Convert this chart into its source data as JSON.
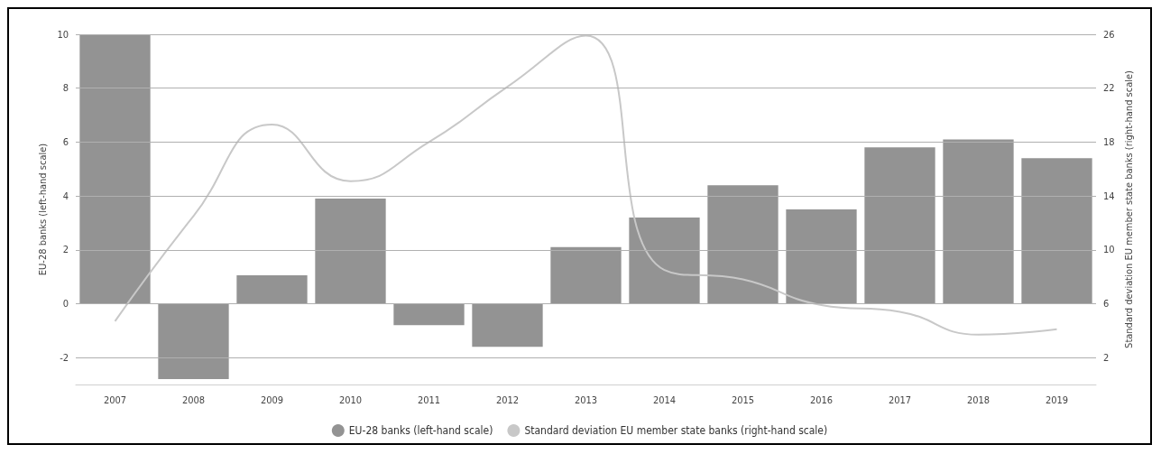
{
  "chart_data": {
    "type": "bar",
    "categories": [
      "2007",
      "2008",
      "2009",
      "2010",
      "2011",
      "2012",
      "2013",
      "2014",
      "2015",
      "2016",
      "2017",
      "2018",
      "2019"
    ],
    "series": [
      {
        "name": "EU-28 banks (left-hand scale)",
        "color": "#939393",
        "values": [
          10,
          -2.8,
          1.05,
          3.9,
          -0.8,
          -1.6,
          2.1,
          3.2,
          4.4,
          3.5,
          5.8,
          6.1,
          5.4
        ]
      },
      {
        "name": "Standard deviation EU member state banks (right-hand scale)",
        "type": "line",
        "axis": "y2",
        "color": "#c8c8c8",
        "values": [
          4.7,
          12.5,
          19.3,
          15.1,
          18.0,
          22.1,
          25.9,
          8.5,
          7.8,
          5.9,
          5.4,
          3.7,
          4.1
        ]
      }
    ],
    "ylabel": "EU-28 banks (left-hand scale)",
    "y2label": "Standard deviation EU member state banks (right-hand scale)",
    "ylim": [
      -3,
      10
    ],
    "yticks": [
      -2,
      0,
      2,
      4,
      6,
      8,
      10
    ],
    "y2lim": [
      0,
      26
    ],
    "y2ticks": [
      2,
      6,
      10,
      14,
      18,
      22,
      26
    ],
    "grid": "y",
    "legend": "bottom",
    "marker": "none",
    "line_style": "solid"
  }
}
